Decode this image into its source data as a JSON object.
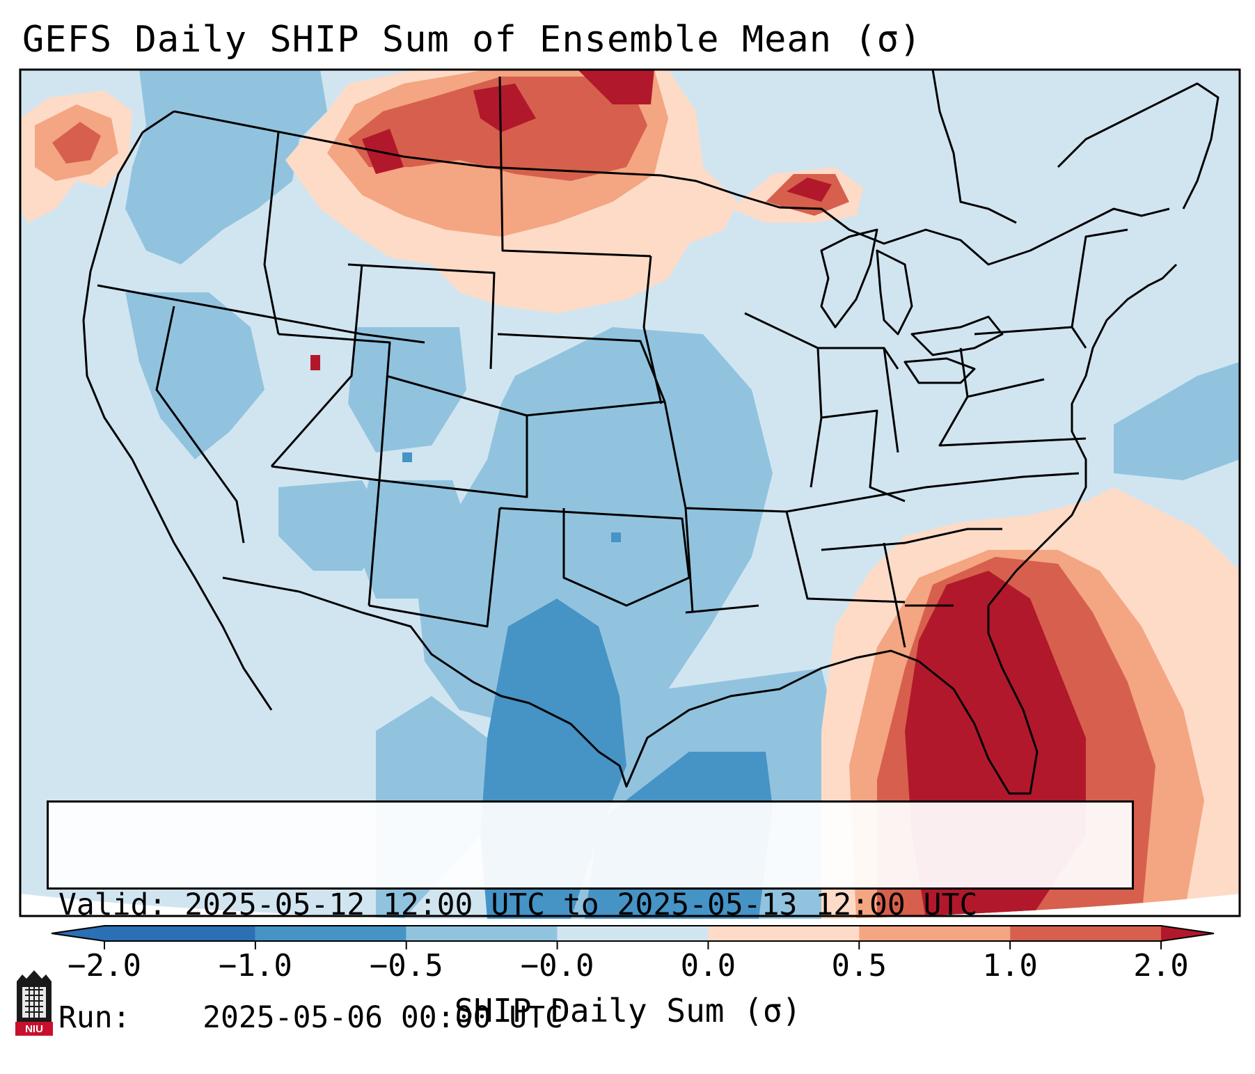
{
  "title": "GEFS Daily SHIP Sum of Ensemble Mean (σ)",
  "info": {
    "valid_label": "Valid:",
    "valid_value": "2025-05-12 12:00 UTC to 2025-05-13 12:00 UTC",
    "run_label": "Run:",
    "run_value": "2025-05-06 00:00 UTC"
  },
  "colorbar": {
    "title": "SHIP Daily Sum (σ)",
    "ticks": [
      "−2.0",
      "−1.0",
      "−0.5",
      "−0.0",
      "0.0",
      "0.5",
      "1.0",
      "2.0"
    ],
    "colors": [
      "#2b6fb4",
      "#4693c6",
      "#91c3df",
      "#d1e5f0",
      "#fddbc7",
      "#f4a582",
      "#d6604d",
      "#b2182b"
    ]
  },
  "map": {
    "region": "Continental United States",
    "blue_regions": [
      "Southern Plains / Texas",
      "Gulf of Mexico",
      "Southwest",
      "Great Basin",
      "Northern Rockies"
    ],
    "red_regions": [
      "Southeast / Florida",
      "Western Atlantic",
      "Northern Plains / Canadian border",
      "Upper Peninsula of Michigan",
      "Pacific Northwest offshore"
    ]
  },
  "logo": {
    "text": "NIU",
    "colors": [
      "#c8102e",
      "#000000"
    ]
  }
}
